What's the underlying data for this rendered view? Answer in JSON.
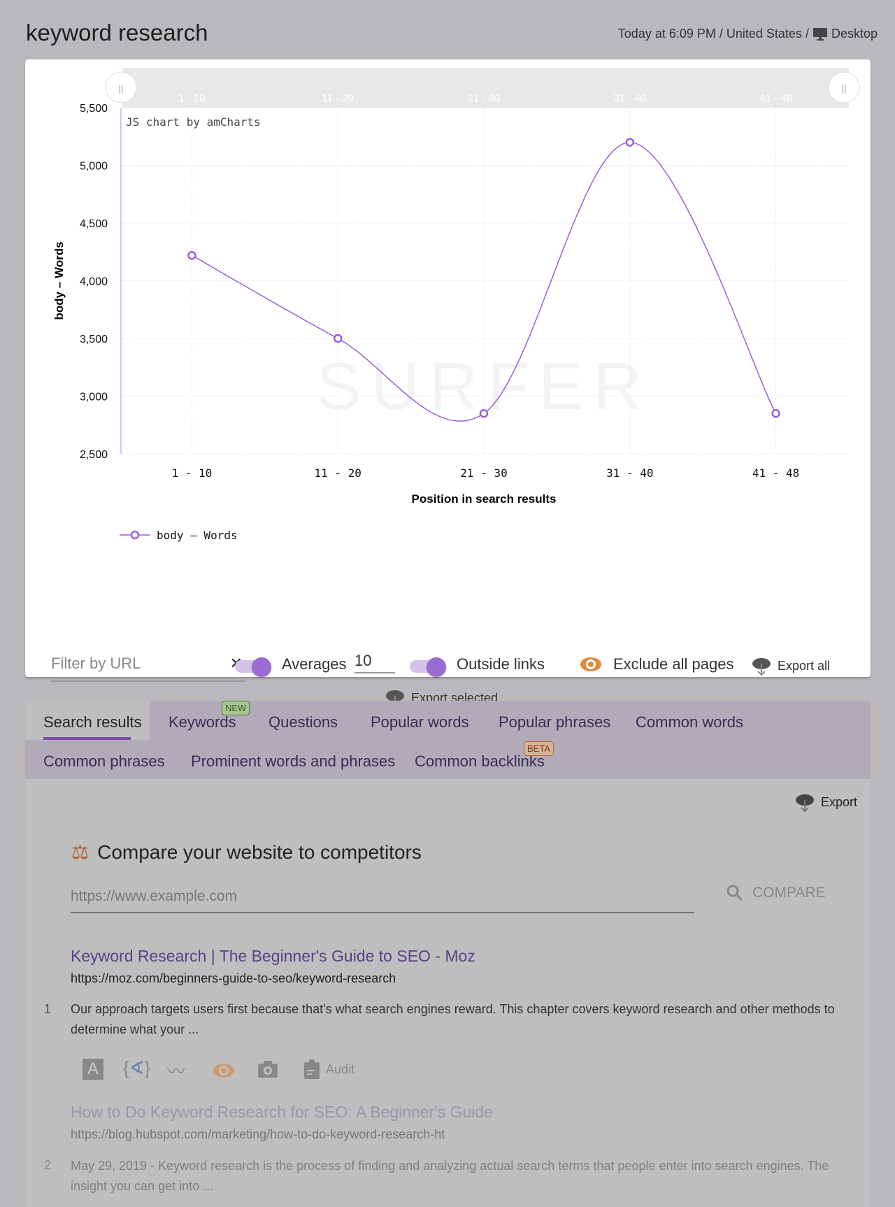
{
  "header": {
    "title": "keyword research",
    "meta": "Today at 6:09 PM / United States /",
    "device": "Desktop",
    "device_icon": "monitor-icon"
  },
  "chart_data": {
    "type": "line",
    "categories": [
      "1 - 10",
      "11 - 20",
      "21 - 30",
      "31 - 40",
      "41 - 48"
    ],
    "series": [
      {
        "name": "body – Words",
        "values": [
          4220,
          3500,
          2850,
          5200,
          2850
        ]
      }
    ],
    "xlabel": "Position in search results",
    "ylabel": "body – Words",
    "ylim": [
      2500,
      5500
    ],
    "yticks": [
      "2,500",
      "3,000",
      "3,500",
      "4,000",
      "4,500",
      "5,000",
      "5,500"
    ],
    "credit": "JS chart by amCharts",
    "watermark": "SURFER",
    "color": "#9a5fd8",
    "grid": true,
    "legend": "bottom-left",
    "smooth": true
  },
  "controls": {
    "filter_placeholder": "Filter by URL",
    "clear": "✕",
    "averages_label": "Averages",
    "averages_value": "10",
    "outside_links_label": "Outside links",
    "exclude_label": "Exclude all pages",
    "export_all": "Export all",
    "export_selected": "Export selected"
  },
  "tabs": [
    {
      "label": "Search results",
      "active": true
    },
    {
      "label": "Keywords",
      "badge": "NEW"
    },
    {
      "label": "Questions"
    },
    {
      "label": "Popular words"
    },
    {
      "label": "Popular phrases"
    },
    {
      "label": "Common words"
    },
    {
      "label": "Common phrases"
    },
    {
      "label": "Prominent words and phrases"
    },
    {
      "label": "Common backlinks",
      "badge": "BETA"
    }
  ],
  "export_label": "Export",
  "compare": {
    "heading": "Compare your website to competitors",
    "placeholder": "https://www.example.com",
    "button": "COMPARE"
  },
  "results": [
    {
      "num": "1",
      "title": "Keyword Research | The Beginner's Guide to SEO - Moz",
      "url": "https://moz.com/beginners-guide-to-seo/keyword-research",
      "snippet": "Our approach targets users first because that's what search engines reward. This chapter covers keyword research and other methods to determine what your ...",
      "audit": "Audit"
    },
    {
      "num": "2",
      "title": "How to Do Keyword Research for SEO: A Beginner's Guide",
      "url": "https://blog.hubspot.com/marketing/how-to-do-keyword-research-ht",
      "snippet": "May 29, 2019 - Keyword research is the process of finding and analyzing actual search terms that people enter into search engines. The insight you can get into ..."
    }
  ]
}
